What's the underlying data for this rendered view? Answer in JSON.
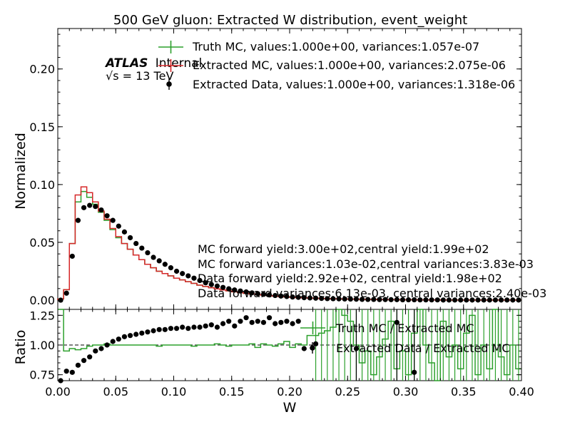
{
  "chart_data": {
    "type": "step-histogram-with-ratio",
    "title": "500 GeV gluon: Extracted W distribution, event_weight",
    "xlabel": "W",
    "top_panel": {
      "ylabel": "Normalized",
      "ylim": [
        -0.008,
        0.235
      ],
      "yticks": [
        "0.00",
        "0.05",
        "0.10",
        "0.15",
        "0.20"
      ],
      "legend_placement": "top-right",
      "series": [
        {
          "name": "Truth MC, values:1.000e+00, variances:1.057e-07",
          "style": "step",
          "color": "#2ca02c"
        },
        {
          "name": "Extracted MC, values:1.000e+00, variances:2.075e-06",
          "style": "step",
          "color": "#d62728"
        },
        {
          "name": "Extracted Data, values:1.000e+00, variances:1.318e-06",
          "style": "points",
          "color": "#000000"
        }
      ],
      "bin_edges": [
        0.0,
        0.005,
        0.01,
        0.015,
        0.02,
        0.025,
        0.03,
        0.035,
        0.04,
        0.045,
        0.05,
        0.055,
        0.06,
        0.065,
        0.07,
        0.075,
        0.08,
        0.085,
        0.09,
        0.095,
        0.1,
        0.105,
        0.11,
        0.115,
        0.12,
        0.125,
        0.13,
        0.135,
        0.14,
        0.145,
        0.15,
        0.155,
        0.16,
        0.165,
        0.17,
        0.175,
        0.18,
        0.185,
        0.19,
        0.195,
        0.2,
        0.205,
        0.21,
        0.215,
        0.22,
        0.225,
        0.23,
        0.235,
        0.24,
        0.245,
        0.25,
        0.255,
        0.26,
        0.265,
        0.27,
        0.275,
        0.28,
        0.285,
        0.29,
        0.295,
        0.3,
        0.305,
        0.31,
        0.315,
        0.32,
        0.325,
        0.33,
        0.335,
        0.34,
        0.345,
        0.35,
        0.355,
        0.36,
        0.365,
        0.37,
        0.375,
        0.38,
        0.385,
        0.39,
        0.395,
        0.4
      ],
      "truth_mc": [
        0.001,
        0.009,
        0.049,
        0.085,
        0.094,
        0.089,
        0.083,
        0.076,
        0.069,
        0.061,
        0.054,
        0.049,
        0.044,
        0.039,
        0.035,
        0.031,
        0.028,
        0.025,
        0.023,
        0.021,
        0.019,
        0.0175,
        0.016,
        0.0145,
        0.013,
        0.0118,
        0.0107,
        0.0097,
        0.0088,
        0.008,
        0.0072,
        0.0065,
        0.0059,
        0.0053,
        0.0048,
        0.0043,
        0.0039,
        0.0035,
        0.0031,
        0.0028,
        0.0025,
        0.0022,
        0.002,
        0.0018,
        0.0016,
        0.0014,
        0.0013,
        0.0012,
        0.0011,
        0.001,
        0.0009,
        0.0008,
        0.0007,
        0.0006,
        0.0006,
        0.0005,
        0.0005,
        0.0004,
        0.0004,
        0.0003,
        0.0003,
        0.0003,
        0.0002,
        0.0002,
        0.0002,
        0.0002,
        0.0001,
        0.0001,
        0.0001,
        0.0001,
        0.0001,
        0.0001,
        0.0001,
        0.0001,
        0.0001,
        0.0001,
        0.0001,
        0.0001,
        0.0001,
        0.0001
      ],
      "extracted_mc": [
        0.001,
        0.009,
        0.049,
        0.091,
        0.098,
        0.093,
        0.085,
        0.077,
        0.07,
        0.062,
        0.055,
        0.049,
        0.044,
        0.039,
        0.035,
        0.031,
        0.028,
        0.025,
        0.023,
        0.021,
        0.019,
        0.0175,
        0.016,
        0.0145,
        0.013,
        0.0118,
        0.0107,
        0.0097,
        0.0088,
        0.008,
        0.0072,
        0.0065,
        0.0059,
        0.0053,
        0.0048,
        0.0043,
        0.0039,
        0.0035,
        0.0031,
        0.0028,
        0.0025,
        0.0022,
        0.002,
        0.0018,
        0.0016,
        0.0014,
        0.0013,
        0.0012,
        0.0011,
        0.001,
        0.0009,
        0.0008,
        0.0007,
        0.0006,
        0.0006,
        0.0005,
        0.0005,
        0.0004,
        0.0004,
        0.0003,
        0.0003,
        0.0003,
        0.0002,
        0.0002,
        0.0002,
        0.0002,
        0.0001,
        0.0001,
        0.0001,
        0.0001,
        0.0001,
        0.0001,
        0.0001,
        0.0001,
        0.0001,
        0.0001,
        0.0001,
        0.0001,
        0.0001,
        0.0001
      ],
      "extracted_data": [
        0.0,
        0.006,
        0.038,
        0.069,
        0.08,
        0.082,
        0.081,
        0.078,
        0.073,
        0.069,
        0.064,
        0.059,
        0.054,
        0.049,
        0.045,
        0.041,
        0.037,
        0.034,
        0.031,
        0.028,
        0.025,
        0.023,
        0.021,
        0.019,
        0.017,
        0.015,
        0.0135,
        0.0122,
        0.011,
        0.0098,
        0.0088,
        0.0079,
        0.0071,
        0.0063,
        0.0056,
        0.005,
        0.0045,
        0.004,
        0.0035,
        0.0031,
        0.0027,
        0.0024,
        0.0021,
        0.0019,
        0.0017,
        0.0015,
        0.0013,
        0.0012,
        0.0011,
        0.001,
        0.0009,
        0.0008,
        0.0007,
        0.0006,
        0.0006,
        0.0005,
        0.0005,
        0.0004,
        0.0004,
        0.0003,
        0.0003,
        0.0003,
        0.0002,
        0.0002,
        0.0002,
        0.0002,
        0.0001,
        0.0001,
        0.0001,
        0.0001,
        0.0001,
        0.0001,
        0.0001,
        0.0001,
        0.0001,
        0.0001,
        0.0001,
        0.0001,
        0.0001,
        0.0001
      ]
    },
    "ratio_panel": {
      "ylabel": "Ratio",
      "ylim": [
        0.7,
        1.3
      ],
      "yticks": [
        "0.75",
        "1.00",
        "1.25"
      ],
      "reference_line": 1.0,
      "legend_placement": "right",
      "series": [
        {
          "name": "Truth MC / Extracted MC",
          "style": "step",
          "color": "#2ca02c"
        },
        {
          "name": "Extracted Data / Extracted MC",
          "style": "points",
          "color": "#000000"
        }
      ],
      "truth_over_mc": [
        1.3,
        0.95,
        0.97,
        0.96,
        0.97,
        0.99,
        1.0,
        1.0,
        1.01,
        1.0,
        1.0,
        1.0,
        1.0,
        1.0,
        1.0,
        1.0,
        1.0,
        0.99,
        1.0,
        1.0,
        1.0,
        1.0,
        1.0,
        0.99,
        1.0,
        1.0,
        1.0,
        1.01,
        1.0,
        0.99,
        1.0,
        1.0,
        1.0,
        1.01,
        0.98,
        1.01,
        1.0,
        0.99,
        1.01,
        1.03,
        0.98,
        1.01,
        1.0,
        1.08,
        1.08,
        1.1,
        1.12,
        1.15,
        1.3,
        1.25,
        1.2,
        1.0,
        0.85,
        0.95,
        0.75,
        0.9,
        1.05,
        1.2,
        0.8,
        0.95,
        0.75,
        1.1,
        1.3,
        1.0,
        0.85,
        0.7,
        1.2,
        0.9,
        1.0,
        0.8,
        1.1,
        1.25,
        0.75,
        1.0,
        0.8,
        1.3,
        0.9,
        0.75,
        1.0,
        0.8
      ],
      "data_over_mc": [
        0.7,
        0.78,
        0.77,
        0.83,
        0.87,
        0.9,
        0.95,
        0.97,
        1.0,
        1.03,
        1.05,
        1.07,
        1.08,
        1.09,
        1.1,
        1.11,
        1.12,
        1.13,
        1.13,
        1.14,
        1.14,
        1.15,
        1.14,
        1.15,
        1.15,
        1.16,
        1.17,
        1.15,
        1.18,
        1.2,
        1.16,
        1.2,
        1.23,
        1.19,
        1.2,
        1.19,
        1.23,
        1.18,
        1.19,
        1.2,
        1.18,
        1.2,
        0.97,
        null,
        1.01,
        null,
        null,
        null,
        null,
        null,
        null,
        0.97,
        null,
        null,
        null,
        null,
        null,
        null,
        1.19,
        null,
        null,
        0.77,
        null,
        null,
        null,
        null,
        null,
        null,
        null,
        null,
        null,
        null,
        null,
        null,
        null,
        null,
        null,
        null,
        null,
        null
      ]
    },
    "xlim": [
      0.0,
      0.4
    ],
    "xticks": [
      "0.00",
      "0.05",
      "0.10",
      "0.15",
      "0.20",
      "0.25",
      "0.30",
      "0.35",
      "0.40"
    ],
    "annotations": {
      "atlas_label": "ATLAS",
      "atlas_status": "Internal",
      "energy_label": "√s = 13 TeV",
      "stats": [
        "MC forward yield:3.00e+02,central yield:1.99e+02",
        "MC forward variances:1.03e-02,central variances:3.83e-03",
        "Data forward yield:2.92e+02, central yield:1.98e+02",
        "Data forward variances:6.13e-03, central variances:2.40e-03"
      ]
    }
  }
}
